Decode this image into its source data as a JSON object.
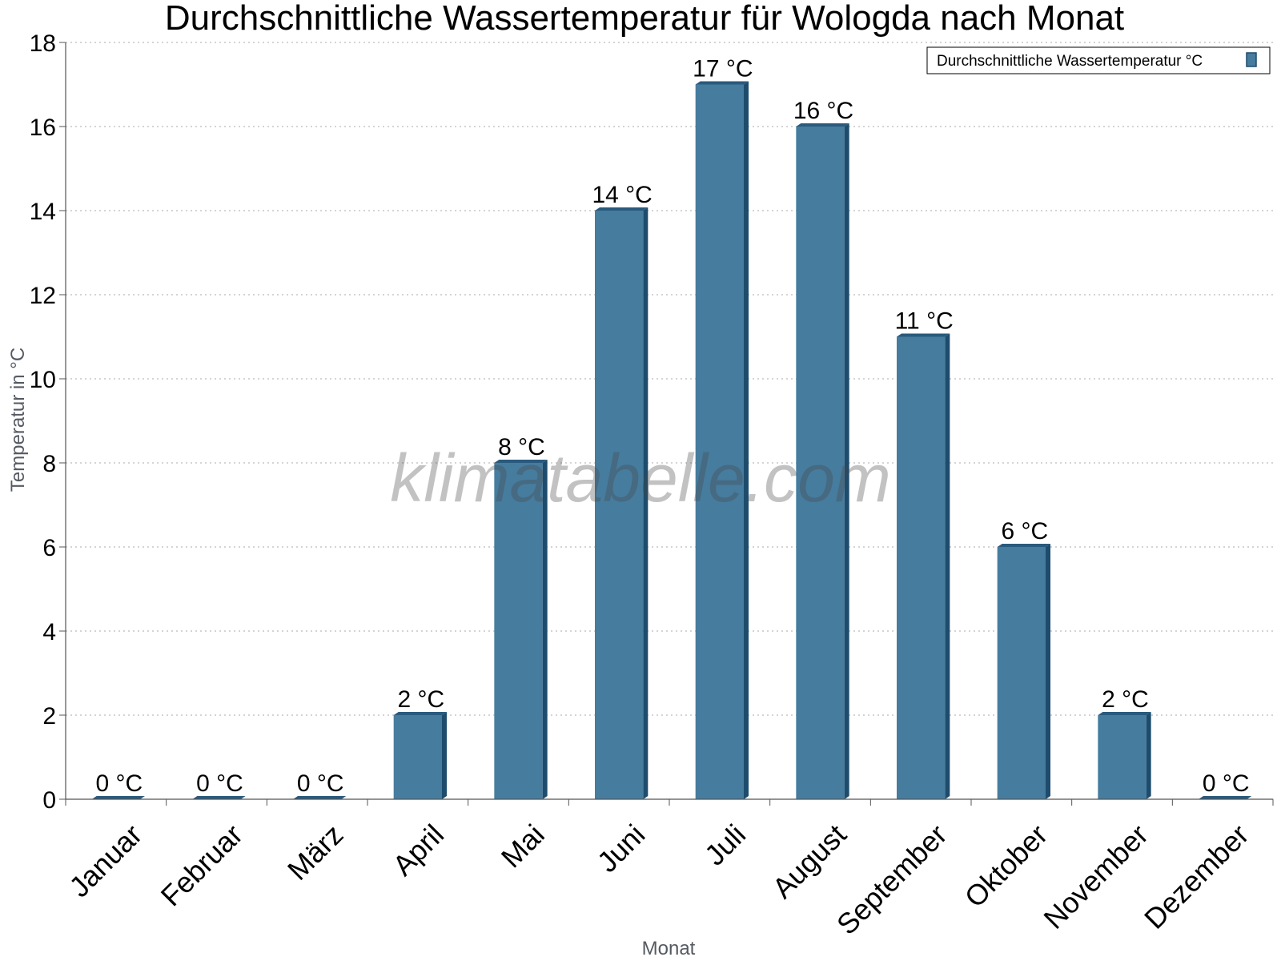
{
  "chart_data": {
    "type": "bar",
    "title": "Durchschnittliche Wassertemperatur für Wologda nach Monat",
    "xlabel": "Monat",
    "ylabel": "Temperatur in °C",
    "ylim": [
      0,
      18
    ],
    "yticks": [
      0,
      2,
      4,
      6,
      8,
      10,
      12,
      14,
      16,
      18
    ],
    "grid": "horizontal dotted",
    "legend_position": "top-right",
    "categories": [
      "Januar",
      "Februar",
      "März",
      "April",
      "Mai",
      "Juni",
      "Juli",
      "August",
      "September",
      "Oktober",
      "November",
      "Dezember"
    ],
    "series": [
      {
        "name": "Durchschnittliche Wassertemperatur °C",
        "values": [
          0,
          0,
          0,
          2,
          8,
          14,
          17,
          16,
          11,
          6,
          2,
          0
        ],
        "labels": [
          "0 °C",
          "0 °C",
          "0 °C",
          "2 °C",
          "8 °C",
          "14 °C",
          "17 °C",
          "16 °C",
          "11 °C",
          "6 °C",
          "2 °C",
          "0 °C"
        ]
      }
    ],
    "colors": {
      "bar_front": "#467c9e",
      "bar_side": "#1d4c6d",
      "bar_top": "#2a5a7d",
      "grid": "#bbbbbb",
      "axis": "#555555"
    }
  },
  "watermark": "klimatabelle.com"
}
